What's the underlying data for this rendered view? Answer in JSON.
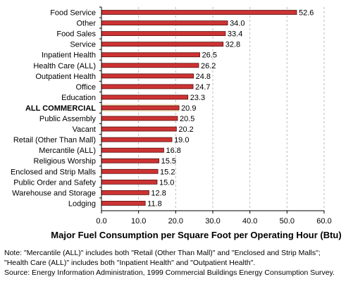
{
  "chart_data": {
    "type": "bar",
    "orientation": "horizontal",
    "categories": [
      "Food Service",
      "Other",
      "Food Sales",
      "Service",
      "Inpatient Health",
      "Health Care (ALL)",
      "Outpatient Health",
      "Office",
      "Education",
      "ALL COMMERCIAL",
      "Public Assembly",
      "Vacant",
      "Retail (Other Than Mall)",
      "Mercantile (ALL)",
      "Religious Worship",
      "Enclosed and Strip Malls",
      "Public Order and Safety",
      "Warehouse and Storage",
      "Lodging"
    ],
    "values": [
      52.6,
      34.0,
      33.4,
      32.8,
      26.5,
      26.2,
      24.8,
      24.7,
      23.3,
      20.9,
      20.5,
      20.2,
      19.0,
      16.8,
      15.5,
      15.2,
      15.0,
      12.8,
      11.8
    ],
    "value_labels": [
      "52.6",
      "34.0",
      "33.4",
      "32.8",
      "26.5",
      "26.2",
      "24.8",
      "24.7",
      "23.3",
      "20.9",
      "20.5",
      "20.2",
      "19.0",
      "16.8",
      "15.5",
      "15.2",
      "15.0",
      "12.8",
      "11.8"
    ],
    "highlight_category": "ALL COMMERCIAL",
    "xlim": [
      0,
      60
    ],
    "xticks": [
      "0.0",
      "10.0",
      "20.0",
      "30.0",
      "40.0",
      "50.0",
      "60.0"
    ],
    "xtick_values": [
      0,
      10,
      20,
      30,
      40,
      50,
      60
    ],
    "xlabel": "Major Fuel Consumption per Square Foot per Operating Hour (Btu)",
    "grid": "vertical dashed",
    "colors": {
      "bar": "#cc3333",
      "bar_edge": "#5a0f0f",
      "highlight": "#fff8d8",
      "grid": "#bbbbbb"
    }
  },
  "notes": {
    "line1": "Note: \"Mercantile (ALL)\" includes both \"Retail (Other Than Mall)\" and \"Enclosed and Strip Malls\";",
    "line2": "\"Health Care (ALL)\" includes both \"Inpatient Health\" and \"Outpatient Health\".",
    "source": "Source: Energy Information Administration, 1999 Commercial Buildings Energy Consumption Survey."
  }
}
